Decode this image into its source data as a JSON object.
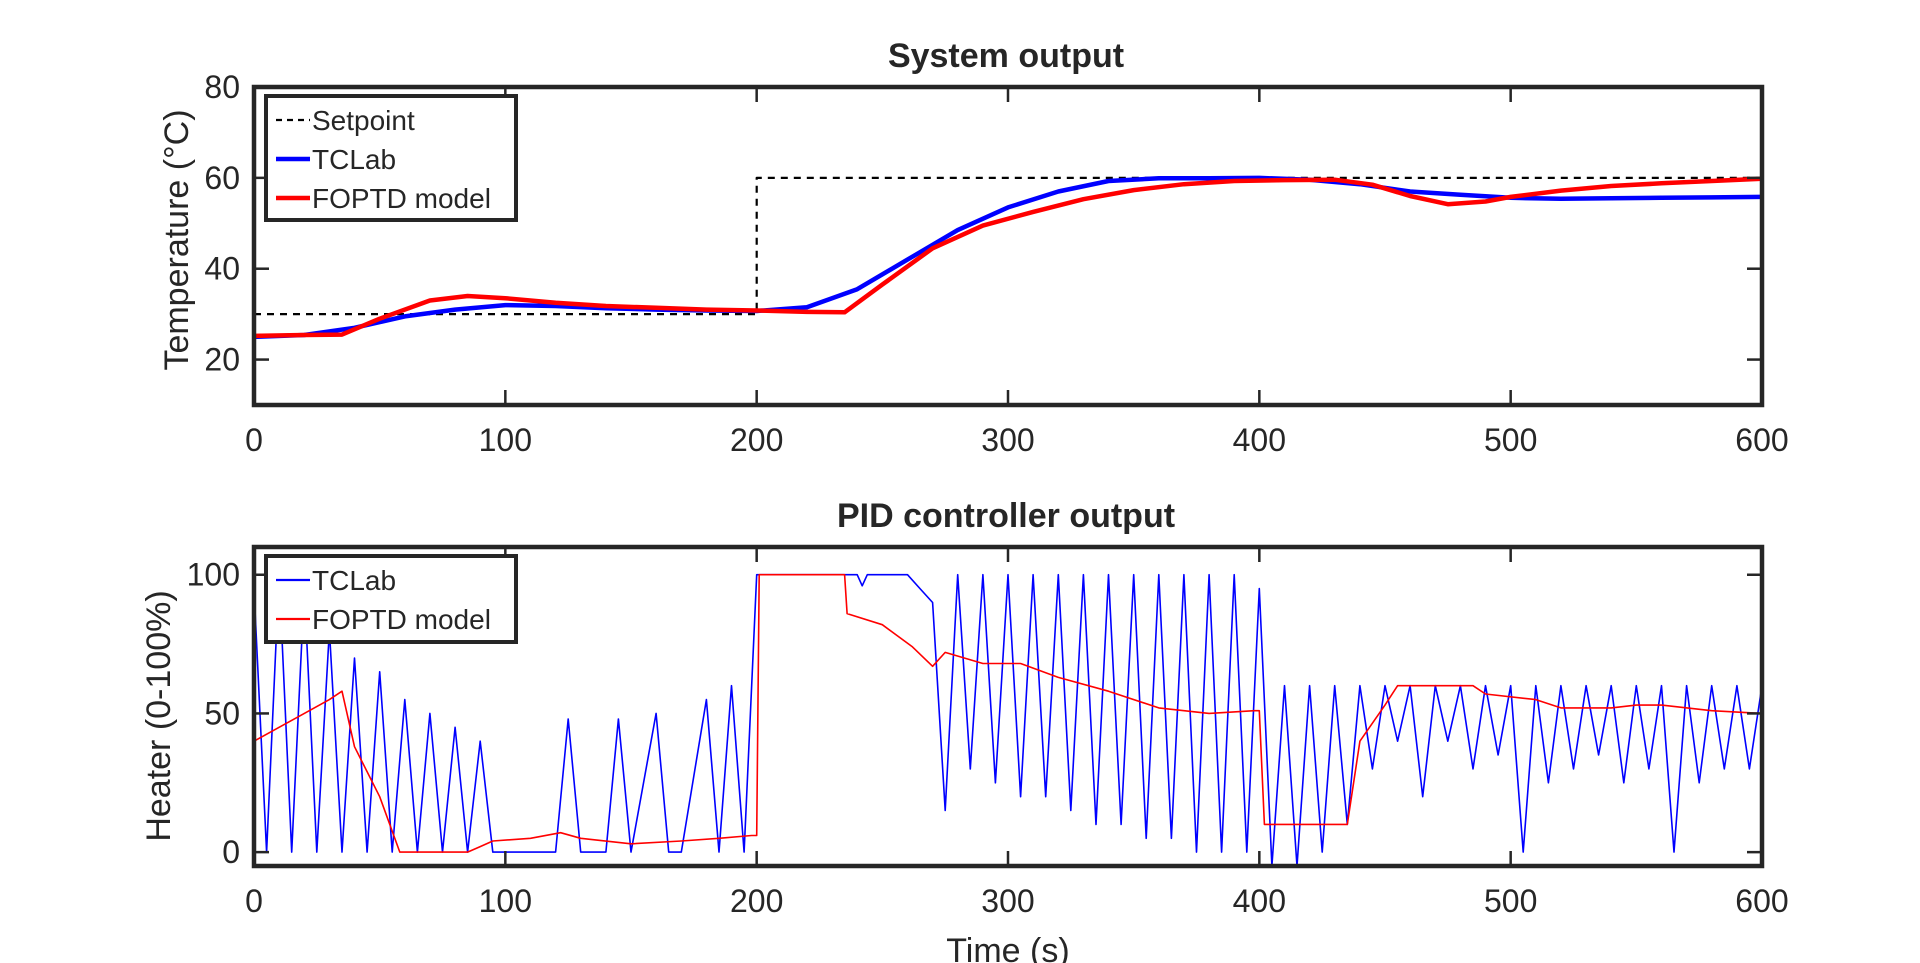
{
  "chart_data": [
    {
      "type": "line",
      "title": "System output",
      "xlabel": "",
      "ylabel": "Temperature (°C)",
      "xlim": [
        0,
        600
      ],
      "ylim": [
        10,
        80
      ],
      "xticks": [
        0,
        100,
        200,
        300,
        400,
        500,
        600
      ],
      "yticks": [
        20,
        40,
        60,
        80
      ],
      "legend_position": "top-left",
      "grid": false,
      "series": [
        {
          "name": "Setpoint",
          "color": "#000000",
          "style": "dashed",
          "x": [
            0,
            200,
            200,
            600
          ],
          "y": [
            30,
            30,
            60,
            60
          ]
        },
        {
          "name": "TCLab",
          "color": "#0000ff",
          "style": "solid",
          "x": [
            0,
            20,
            40,
            60,
            80,
            100,
            120,
            140,
            160,
            180,
            200,
            220,
            240,
            260,
            280,
            300,
            320,
            340,
            360,
            380,
            400,
            420,
            440,
            460,
            480,
            500,
            520,
            540,
            560,
            580,
            600
          ],
          "y": [
            25.0,
            25.4,
            27.0,
            29.5,
            31.0,
            32.0,
            31.8,
            31.3,
            31.0,
            30.8,
            30.7,
            31.5,
            35.5,
            42.0,
            48.5,
            53.5,
            57.0,
            59.3,
            59.9,
            59.9,
            60.0,
            59.6,
            58.6,
            57.0,
            56.3,
            55.6,
            55.4,
            55.5,
            55.6,
            55.7,
            55.8
          ]
        },
        {
          "name": "FOPTD model",
          "color": "#ff0000",
          "style": "solid",
          "x": [
            0,
            20,
            35,
            50,
            70,
            85,
            100,
            120,
            140,
            160,
            180,
            200,
            220,
            235,
            250,
            270,
            290,
            310,
            330,
            350,
            370,
            390,
            410,
            430,
            445,
            460,
            475,
            490,
            500,
            520,
            540,
            560,
            580,
            600
          ],
          "y": [
            25.2,
            25.4,
            25.5,
            29.0,
            33.0,
            34.0,
            33.5,
            32.5,
            31.8,
            31.4,
            31.0,
            30.8,
            30.5,
            30.4,
            36.5,
            44.5,
            49.5,
            52.5,
            55.3,
            57.3,
            58.6,
            59.3,
            59.5,
            59.6,
            58.5,
            56.0,
            54.2,
            54.8,
            55.8,
            57.2,
            58.2,
            58.8,
            59.3,
            59.8
          ]
        }
      ]
    },
    {
      "type": "line",
      "title": "PID controller output",
      "xlabel": "Time (s)",
      "ylabel": "Heater (0-100%)",
      "xlim": [
        0,
        600
      ],
      "ylim": [
        -5,
        110
      ],
      "xticks": [
        0,
        100,
        200,
        300,
        400,
        500,
        600
      ],
      "yticks": [
        0,
        50,
        100
      ],
      "legend_position": "top-left",
      "grid": false,
      "series": [
        {
          "name": "TCLab",
          "color": "#0000ff",
          "style": "solid-thin",
          "x": [
            0,
            5,
            10,
            15,
            20,
            25,
            30,
            35,
            40,
            45,
            50,
            55,
            60,
            65,
            70,
            75,
            80,
            85,
            90,
            95,
            100,
            110,
            120,
            125,
            130,
            140,
            145,
            150,
            160,
            165,
            170,
            180,
            185,
            190,
            195,
            200,
            210,
            220,
            230,
            240,
            242,
            244,
            250,
            260,
            265,
            270,
            275,
            280,
            285,
            290,
            295,
            300,
            305,
            310,
            315,
            320,
            325,
            330,
            335,
            340,
            345,
            350,
            355,
            360,
            365,
            370,
            375,
            380,
            385,
            390,
            395,
            400,
            405,
            410,
            415,
            420,
            425,
            430,
            435,
            440,
            445,
            450,
            455,
            460,
            465,
            470,
            475,
            480,
            485,
            490,
            495,
            500,
            505,
            510,
            515,
            520,
            525,
            530,
            535,
            540,
            545,
            550,
            555,
            560,
            565,
            570,
            575,
            580,
            585,
            590,
            595,
            600
          ],
          "y": [
            95,
            0,
            100,
            0,
            95,
            0,
            80,
            0,
            70,
            0,
            65,
            0,
            55,
            0,
            50,
            0,
            45,
            0,
            40,
            0,
            0,
            0,
            0,
            48,
            0,
            0,
            48,
            0,
            50,
            0,
            0,
            55,
            0,
            60,
            0,
            100,
            100,
            100,
            100,
            100,
            96,
            100,
            100,
            100,
            95,
            90,
            15,
            100,
            30,
            100,
            25,
            100,
            20,
            100,
            20,
            100,
            15,
            100,
            10,
            100,
            10,
            100,
            5,
            100,
            5,
            100,
            0,
            100,
            0,
            100,
            0,
            95,
            -5,
            60,
            -5,
            60,
            0,
            60,
            10,
            60,
            30,
            60,
            40,
            60,
            20,
            60,
            40,
            60,
            30,
            60,
            35,
            60,
            0,
            60,
            25,
            60,
            30,
            60,
            35,
            60,
            25,
            60,
            30,
            60,
            0,
            60,
            25,
            60,
            30,
            60,
            30,
            60
          ]
        },
        {
          "name": "FOPTD model",
          "color": "#ff0000",
          "style": "solid-thin",
          "x": [
            0,
            10,
            20,
            30,
            35,
            40,
            50,
            58,
            70,
            85,
            90,
            95,
            110,
            122,
            130,
            150,
            170,
            185,
            198,
            200,
            201,
            220,
            235,
            236,
            250,
            262,
            270,
            275,
            290,
            305,
            320,
            340,
            360,
            380,
            398,
            400,
            402,
            420,
            435,
            440,
            450,
            455,
            470,
            485,
            490,
            510,
            520,
            540,
            550,
            560,
            580,
            600
          ],
          "y": [
            40,
            45,
            50,
            55,
            58,
            38,
            20,
            0,
            0,
            0,
            2,
            4,
            5,
            7,
            5,
            3,
            4,
            5,
            6,
            6,
            100,
            100,
            100,
            86,
            82,
            74,
            67,
            72,
            68,
            68,
            63,
            58,
            52,
            50,
            51,
            51,
            10,
            10,
            10,
            40,
            53,
            60,
            60,
            60,
            57,
            55,
            52,
            52,
            53,
            53,
            51,
            50
          ]
        }
      ]
    }
  ]
}
